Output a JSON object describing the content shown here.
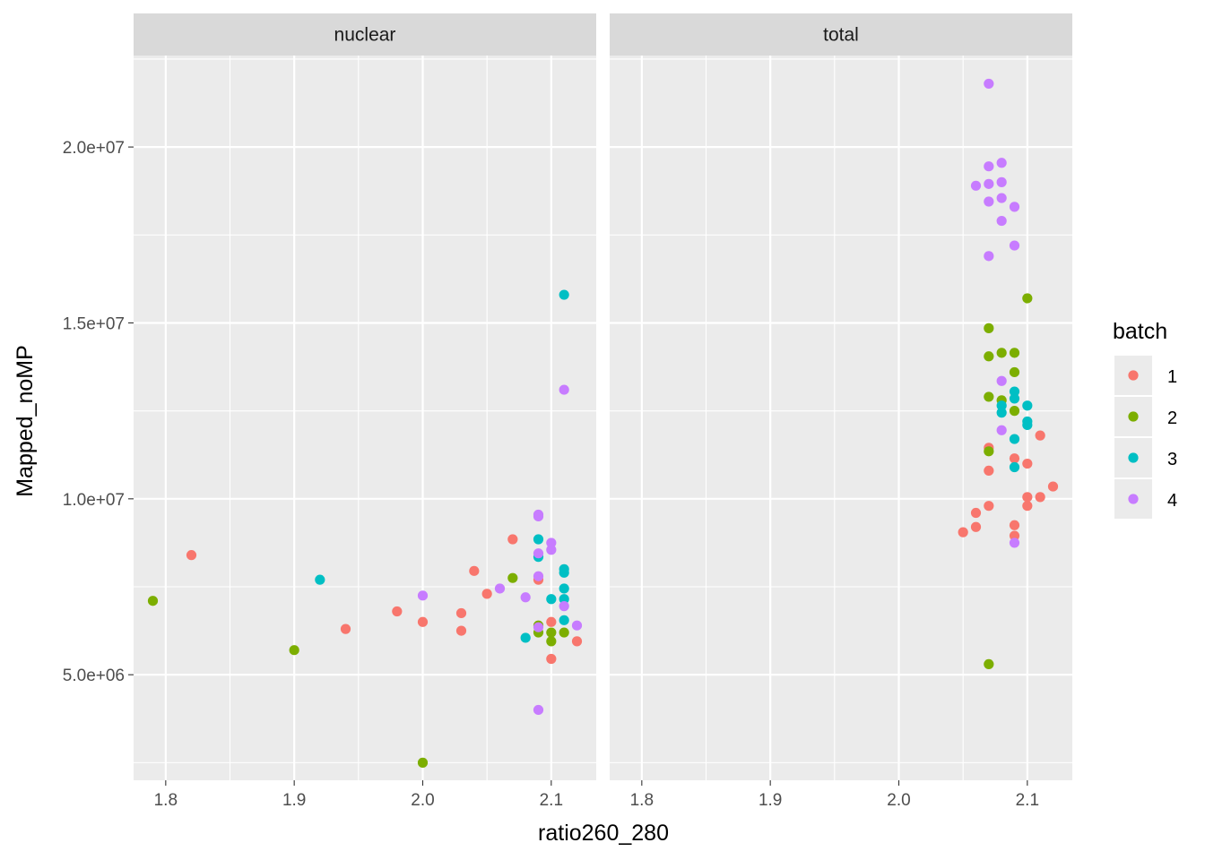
{
  "chart_data": {
    "type": "scatter",
    "xlabel": "ratio260_280",
    "ylabel": "Mapped_noMP",
    "xlim": [
      1.775,
      2.135
    ],
    "ylim": [
      2000000,
      22600000
    ],
    "x_ticks": [
      1.8,
      1.9,
      2.0,
      2.1
    ],
    "x_tick_labels": [
      "1.8",
      "1.9",
      "2.0",
      "2.1"
    ],
    "y_ticks": [
      5000000,
      10000000,
      15000000,
      20000000
    ],
    "y_tick_labels": [
      "5.0e+06",
      "1.0e+07",
      "1.5e+07",
      "2.0e+07"
    ],
    "grid": true,
    "legend": {
      "title": "batch",
      "position": "right",
      "entries": [
        {
          "label": "1",
          "color": "#F8766D"
        },
        {
          "label": "2",
          "color": "#7CAE00"
        },
        {
          "label": "3",
          "color": "#00BFC4"
        },
        {
          "label": "4",
          "color": "#C77CFF"
        }
      ]
    },
    "panels": [
      {
        "name": "nuclear",
        "points": [
          [
            1.82,
            8400000,
            "1"
          ],
          [
            1.94,
            6300000,
            "1"
          ],
          [
            1.98,
            6800000,
            "1"
          ],
          [
            2.0,
            6500000,
            "1"
          ],
          [
            2.03,
            6250000,
            "1"
          ],
          [
            2.03,
            6750000,
            "1"
          ],
          [
            2.04,
            7950000,
            "1"
          ],
          [
            2.05,
            7300000,
            "1"
          ],
          [
            2.07,
            8850000,
            "1"
          ],
          [
            2.09,
            7700000,
            "1"
          ],
          [
            2.1,
            6500000,
            "1"
          ],
          [
            2.1,
            5450000,
            "1"
          ],
          [
            2.12,
            5950000,
            "1"
          ],
          [
            1.79,
            7100000,
            "2"
          ],
          [
            1.9,
            5700000,
            "2"
          ],
          [
            2.0,
            2500000,
            "2"
          ],
          [
            2.07,
            7750000,
            "2"
          ],
          [
            2.09,
            6400000,
            "2"
          ],
          [
            2.09,
            6200000,
            "2"
          ],
          [
            2.1,
            6200000,
            "2"
          ],
          [
            2.1,
            5950000,
            "2"
          ],
          [
            2.11,
            6200000,
            "2"
          ],
          [
            1.92,
            7700000,
            "3"
          ],
          [
            2.08,
            6050000,
            "3"
          ],
          [
            2.09,
            8850000,
            "3"
          ],
          [
            2.09,
            8350000,
            "3"
          ],
          [
            2.1,
            7150000,
            "3"
          ],
          [
            2.11,
            15800000,
            "3"
          ],
          [
            2.11,
            8000000,
            "3"
          ],
          [
            2.11,
            7900000,
            "3"
          ],
          [
            2.11,
            7450000,
            "3"
          ],
          [
            2.11,
            7150000,
            "3"
          ],
          [
            2.11,
            6550000,
            "3"
          ],
          [
            2.0,
            7250000,
            "4"
          ],
          [
            2.06,
            7450000,
            "4"
          ],
          [
            2.08,
            7200000,
            "4"
          ],
          [
            2.09,
            9550000,
            "4"
          ],
          [
            2.09,
            9500000,
            "4"
          ],
          [
            2.09,
            8450000,
            "4"
          ],
          [
            2.09,
            7800000,
            "4"
          ],
          [
            2.09,
            6350000,
            "4"
          ],
          [
            2.09,
            4000000,
            "4"
          ],
          [
            2.1,
            8750000,
            "4"
          ],
          [
            2.1,
            8550000,
            "4"
          ],
          [
            2.11,
            13100000,
            "4"
          ],
          [
            2.11,
            6950000,
            "4"
          ],
          [
            2.12,
            6400000,
            "4"
          ]
        ]
      },
      {
        "name": "total",
        "points": [
          [
            2.05,
            9050000,
            "1"
          ],
          [
            2.06,
            9600000,
            "1"
          ],
          [
            2.06,
            9200000,
            "1"
          ],
          [
            2.07,
            11450000,
            "1"
          ],
          [
            2.07,
            10800000,
            "1"
          ],
          [
            2.07,
            9800000,
            "1"
          ],
          [
            2.09,
            11150000,
            "1"
          ],
          [
            2.09,
            9250000,
            "1"
          ],
          [
            2.09,
            8950000,
            "1"
          ],
          [
            2.1,
            11000000,
            "1"
          ],
          [
            2.1,
            10050000,
            "1"
          ],
          [
            2.1,
            9800000,
            "1"
          ],
          [
            2.11,
            11800000,
            "1"
          ],
          [
            2.11,
            10050000,
            "1"
          ],
          [
            2.12,
            10350000,
            "1"
          ],
          [
            2.07,
            14850000,
            "2"
          ],
          [
            2.07,
            14050000,
            "2"
          ],
          [
            2.07,
            12900000,
            "2"
          ],
          [
            2.07,
            11350000,
            "2"
          ],
          [
            2.07,
            5300000,
            "2"
          ],
          [
            2.08,
            14150000,
            "2"
          ],
          [
            2.08,
            12800000,
            "2"
          ],
          [
            2.09,
            14150000,
            "2"
          ],
          [
            2.09,
            13600000,
            "2"
          ],
          [
            2.09,
            12500000,
            "2"
          ],
          [
            2.1,
            15700000,
            "2"
          ],
          [
            2.08,
            12650000,
            "3"
          ],
          [
            2.08,
            12450000,
            "3"
          ],
          [
            2.09,
            13050000,
            "3"
          ],
          [
            2.09,
            12850000,
            "3"
          ],
          [
            2.09,
            11700000,
            "3"
          ],
          [
            2.09,
            10900000,
            "3"
          ],
          [
            2.1,
            12650000,
            "3"
          ],
          [
            2.1,
            12200000,
            "3"
          ],
          [
            2.1,
            12100000,
            "3"
          ],
          [
            2.06,
            18900000,
            "4"
          ],
          [
            2.07,
            21800000,
            "4"
          ],
          [
            2.07,
            19450000,
            "4"
          ],
          [
            2.07,
            18950000,
            "4"
          ],
          [
            2.07,
            18450000,
            "4"
          ],
          [
            2.07,
            16900000,
            "4"
          ],
          [
            2.08,
            19550000,
            "4"
          ],
          [
            2.08,
            19000000,
            "4"
          ],
          [
            2.08,
            18550000,
            "4"
          ],
          [
            2.08,
            17900000,
            "4"
          ],
          [
            2.08,
            13350000,
            "4"
          ],
          [
            2.08,
            11950000,
            "4"
          ],
          [
            2.09,
            18300000,
            "4"
          ],
          [
            2.09,
            17200000,
            "4"
          ],
          [
            2.09,
            8750000,
            "4"
          ]
        ]
      }
    ]
  }
}
